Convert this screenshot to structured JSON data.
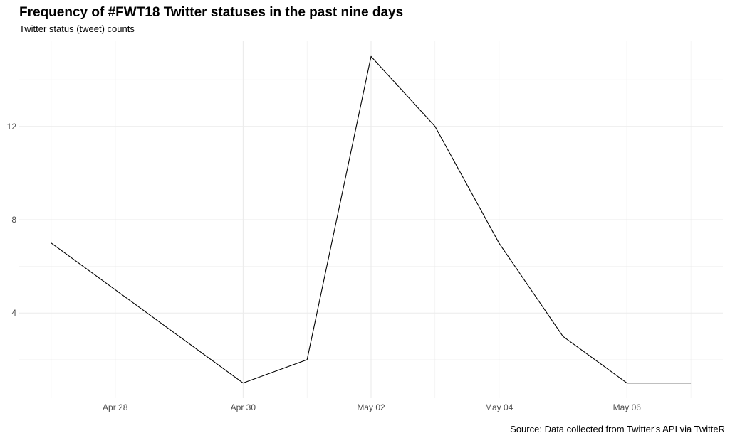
{
  "chart_data": {
    "type": "line",
    "title": "Frequency of #FWT18 Twitter statuses in the past nine days",
    "subtitle": "Twitter status (tweet) counts",
    "caption": "Source: Data collected from Twitter's API via TwitteR",
    "xlabel": "",
    "ylabel": "",
    "x": [
      "2018-04-27",
      "2018-04-28",
      "2018-04-29",
      "2018-04-30",
      "2018-05-01",
      "2018-05-02",
      "2018-05-03",
      "2018-05-04",
      "2018-05-05",
      "2018-05-06",
      "2018-05-07"
    ],
    "series": [
      {
        "values": [
          7,
          5,
          3,
          1,
          2,
          15,
          12,
          7,
          3,
          1,
          1
        ]
      }
    ],
    "x_ticks": [
      {
        "date": "2018-04-28",
        "label": "Apr 28"
      },
      {
        "date": "2018-04-30",
        "label": "Apr 30"
      },
      {
        "date": "2018-05-02",
        "label": "May 02"
      },
      {
        "date": "2018-05-04",
        "label": "May 04"
      },
      {
        "date": "2018-05-06",
        "label": "May 06"
      }
    ],
    "y_ticks": [
      4,
      8,
      12
    ],
    "xlim": [
      "2018-04-26T12:00",
      "2018-05-07T12:00"
    ],
    "ylim": [
      0.35,
      15.65
    ],
    "grid": true,
    "line_color": "#000000",
    "grid_color": "#ebebeb"
  }
}
